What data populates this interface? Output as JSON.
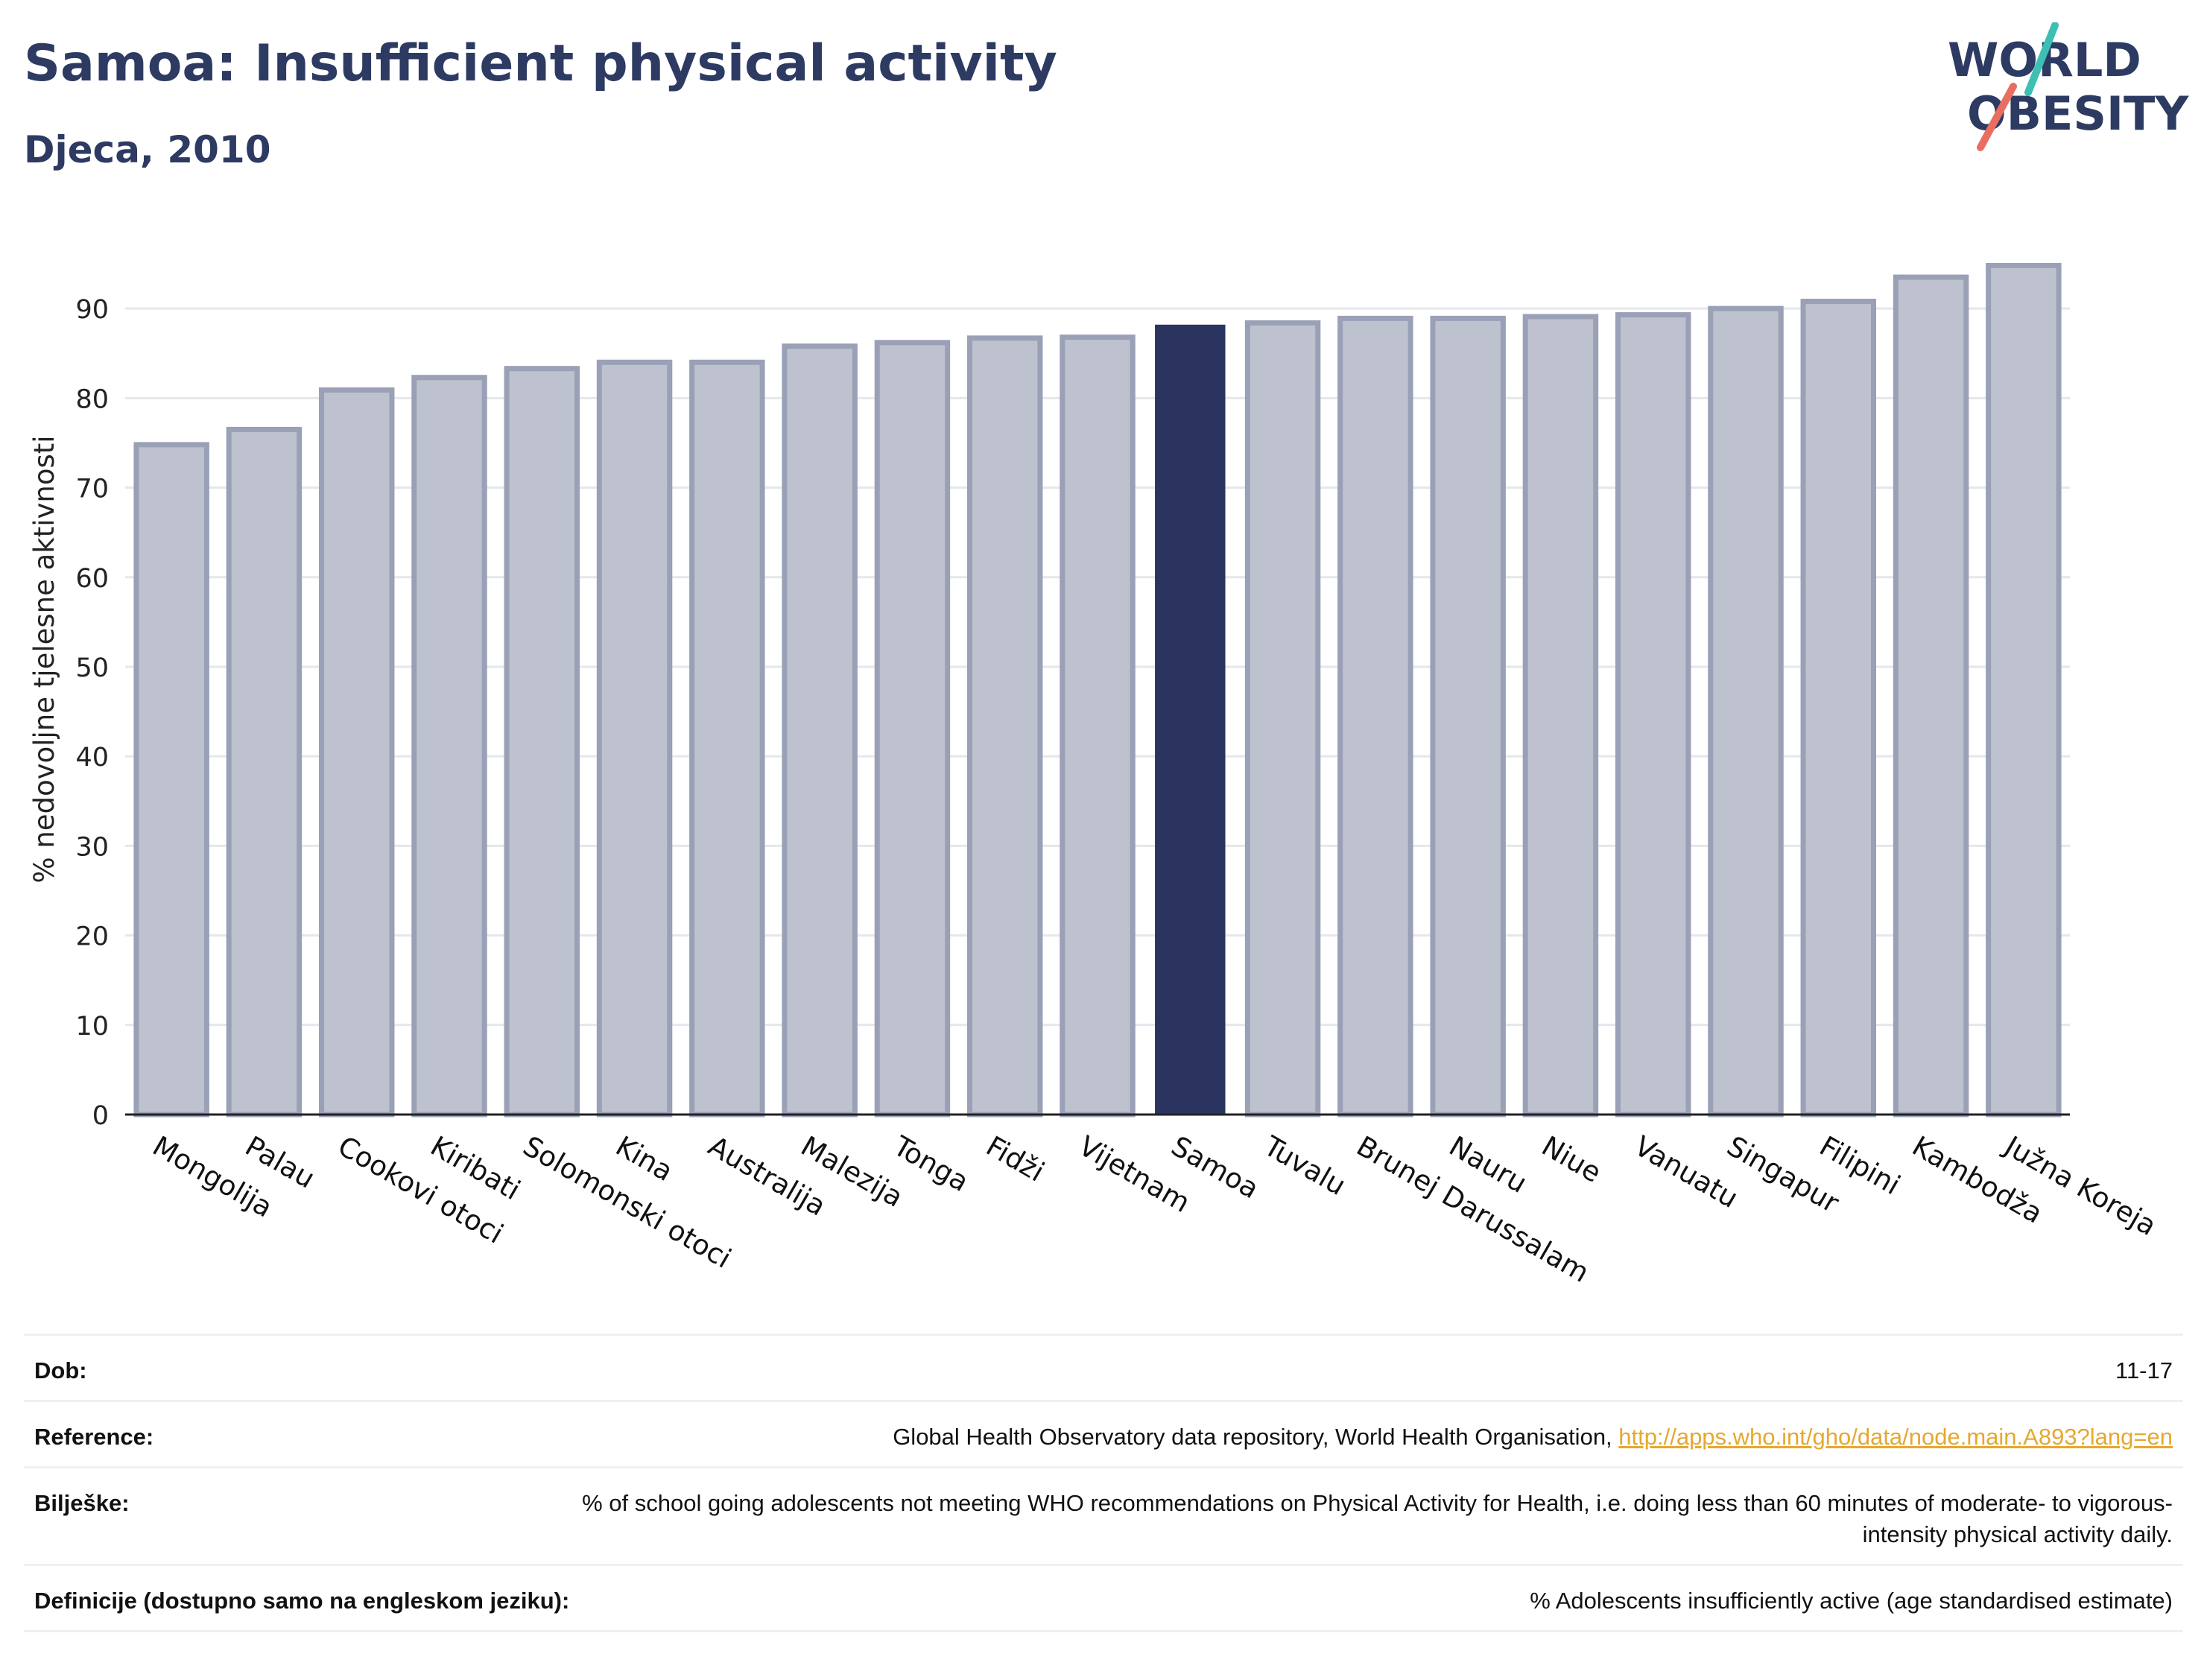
{
  "header": {
    "title": "Samoa: Insufficient physical activity",
    "subtitle": "Djeca, 2010"
  },
  "logo": {
    "line1": "WORLD",
    "line2": "OBESITY"
  },
  "colors": {
    "highlight": "#2b345f",
    "bar_fill": "#bec1ce",
    "bar_stroke": "#9aa0b6",
    "grid": "#e6e7ec",
    "logo_text": "#2d3a62",
    "logo_teal": "#3dbfb4",
    "logo_coral": "#e86f5f"
  },
  "chart_data": {
    "type": "bar",
    "title": "Samoa: Insufficient physical activity",
    "subtitle": "Djeca, 2010",
    "xlabel": "",
    "ylabel": "% nedovoljne tjelesne aktivnosti",
    "categories": [
      "Mongolija",
      "Palau",
      "Cookovi otoci",
      "Kiribati",
      "Solomonski otoci",
      "Kina",
      "Australija",
      "Malezija",
      "Tonga",
      "Fidži",
      "Vijetnam",
      "Samoa",
      "Tuvalu",
      "Brunej Darussalam",
      "Nauru",
      "Niue",
      "Vanuatu",
      "Singapur",
      "Filipini",
      "Kambodža",
      "Južna Koreja"
    ],
    "values": [
      74.8,
      76.5,
      80.9,
      82.3,
      83.3,
      84.0,
      84.0,
      85.8,
      86.2,
      86.7,
      86.8,
      88.2,
      88.4,
      88.9,
      88.9,
      89.1,
      89.3,
      90.0,
      90.8,
      93.5,
      94.8
    ],
    "highlight": "Samoa",
    "ylim": [
      0,
      97
    ],
    "yticks": [
      0,
      10,
      20,
      30,
      40,
      50,
      60,
      70,
      80,
      90
    ],
    "grid": true,
    "legend": "none"
  },
  "info": [
    {
      "label": "Dob:",
      "value": "11-17"
    },
    {
      "label": "Reference:",
      "value": "Global Health Observatory data repository, World Health Organisation, ",
      "link": "http://apps.who.int/gho/data/node.main.A893?lang=en"
    },
    {
      "label": "Bilješke:",
      "value": "% of school going adolescents not meeting WHO recommendations on Physical Activity for Health, i.e. doing less than 60 minutes of moderate- to vigorous-intensity physical activity daily."
    },
    {
      "label": "Definicije (dostupno samo na engleskom jeziku):",
      "value": "% Adolescents insufficiently active (age standardised estimate)"
    }
  ]
}
